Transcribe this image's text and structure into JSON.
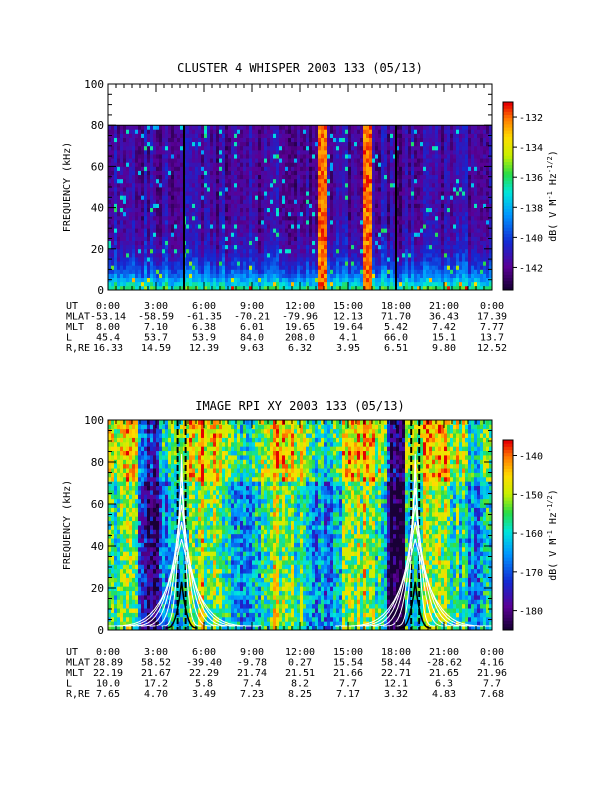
{
  "chart_data": [
    {
      "type": "heatmap",
      "title": "CLUSTER 4 WHISPER 2003 133 (05/13)",
      "ylabel": "FREQUENCY (kHz)",
      "ylim": [
        0,
        100
      ],
      "yticks": [
        0,
        20,
        40,
        60,
        80,
        100
      ],
      "data_fmax_khz": 80,
      "colorbar": {
        "label": "dB( V M⁻¹ Hz⁻¹ᐟ²)",
        "label_parts": [
          "dB( V M",
          "-1",
          " Hz",
          "-1/2",
          ")"
        ],
        "range": [
          -143.5,
          -131
        ],
        "ticks": [
          -132,
          -134,
          -136,
          -138,
          -140,
          -142
        ]
      },
      "x_ticks": [
        "0:00",
        "3:00",
        "6:00",
        "9:00",
        "12:00",
        "15:00",
        "18:00",
        "21:00",
        "0:00"
      ],
      "ephemeris_labels": [
        "UT",
        "MLAT",
        "MLT",
        "L",
        "R,RE"
      ],
      "ephemeris": {
        "MLAT": [
          "-53.14",
          "-58.59",
          "-61.35",
          "-70.21",
          "-79.96",
          "12.13",
          "71.70",
          "36.43",
          "17.39"
        ],
        "MLT": [
          "8.00",
          "7.10",
          "6.38",
          "6.01",
          "19.65",
          "19.64",
          "5.42",
          "7.42",
          "7.77"
        ],
        "L": [
          "45.4",
          "53.7",
          "53.9",
          "84.0",
          "208.0",
          "4.1",
          "66.0",
          "15.1",
          "13.7"
        ],
        "R,RE": [
          "16.33",
          "14.59",
          "12.39",
          "9.63",
          "6.32",
          "3.95",
          "6.51",
          "9.80",
          "12.52"
        ]
      },
      "event_lines_ut_hours": [
        4.75,
        18.0
      ]
    },
    {
      "type": "heatmap",
      "title": "IMAGE RPI XY 2003 133 (05/13)",
      "ylabel": "FREQUENCY (kHz)",
      "ylim": [
        0,
        100
      ],
      "yticks": [
        0,
        20,
        40,
        60,
        80,
        100
      ],
      "colorbar": {
        "label": "dB( V M⁻¹ Hz⁻¹ᐟ²)",
        "label_parts": [
          "dB( V M",
          "-1",
          " Hz",
          "-1/2",
          ")"
        ],
        "range": [
          -185,
          -136
        ],
        "ticks": [
          -140,
          -150,
          -160,
          -170,
          -180
        ]
      },
      "x_ticks": [
        "0:00",
        "3:00",
        "6:00",
        "9:00",
        "12:00",
        "15:00",
        "18:00",
        "21:00",
        "0:00"
      ],
      "ephemeris_labels": [
        "UT",
        "MLAT",
        "MLT",
        "L",
        "R,RE"
      ],
      "ephemeris": {
        "MLAT": [
          "28.89",
          "58.52",
          "-39.40",
          "-9.78",
          "0.27",
          "15.54",
          "58.44",
          "-28.62",
          "4.16"
        ],
        "MLT": [
          "22.19",
          "21.67",
          "22.29",
          "21.74",
          "21.51",
          "21.66",
          "22.71",
          "21.65",
          "21.96"
        ],
        "L": [
          "10.0",
          "17.2",
          "5.8",
          "7.4",
          "8.2",
          "7.7",
          "12.1",
          "6.3",
          "7.7"
        ],
        "R,RE": [
          "7.65",
          "4.70",
          "3.49",
          "7.23",
          "8.25",
          "7.17",
          "3.32",
          "4.83",
          "7.68"
        ]
      },
      "perigee_ut_hours": [
        4.6,
        19.2
      ]
    }
  ]
}
